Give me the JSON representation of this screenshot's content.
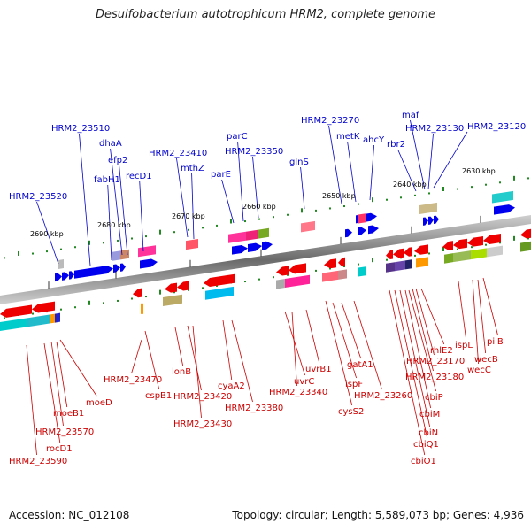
{
  "title": "Desulfobacterium autotrophicum HRM2, complete genome",
  "footer": {
    "accession": "Accession: NC_012108",
    "summary": "Topology: circular; Length: 5,589,073 bp; Genes: 4,936"
  },
  "ticks": [
    "2690 kbp",
    "2680 kbp",
    "2670 kbp",
    "2660 kbp",
    "2650 kbp",
    "2640 kbp",
    "2630 kbp"
  ],
  "top_labels": [
    "HRM2_23520",
    "HRM2_23510",
    "fabH1",
    "dhaA",
    "efp2",
    "recD1",
    "HRM2_23410",
    "mthZ",
    "parE",
    "parC",
    "HRM2_23350",
    "glnS",
    "HRM2_23270",
    "metK",
    "ahcY",
    "rbr2",
    "maf",
    "HRM2_23130",
    "HRM2_23120"
  ],
  "bottom_labels": [
    "HRM2_23590",
    "rocD1",
    "HRM2_23570",
    "moeB1",
    "moeD",
    "HRM2_23470",
    "cspB1",
    "lonB",
    "HRM2_23420",
    "HRM2_23430",
    "cyaA2",
    "HRM2_23380",
    "uvrC",
    "HRM2_23340",
    "uvrB1",
    "cysS2",
    "ispF",
    "gatA1",
    "HRM2_23260",
    "cbiO1",
    "cbiQ1",
    "cbiN",
    "cbiM",
    "cbiP",
    "HRM2_23180",
    "HRM2_23170",
    "rhlE2",
    "ispL",
    "wecC",
    "wecB",
    "pilB"
  ],
  "colors": {
    "forward": "#0000ee",
    "reverse": "#ee0000",
    "backbone": "#888888",
    "gc_dots": "#228822"
  }
}
